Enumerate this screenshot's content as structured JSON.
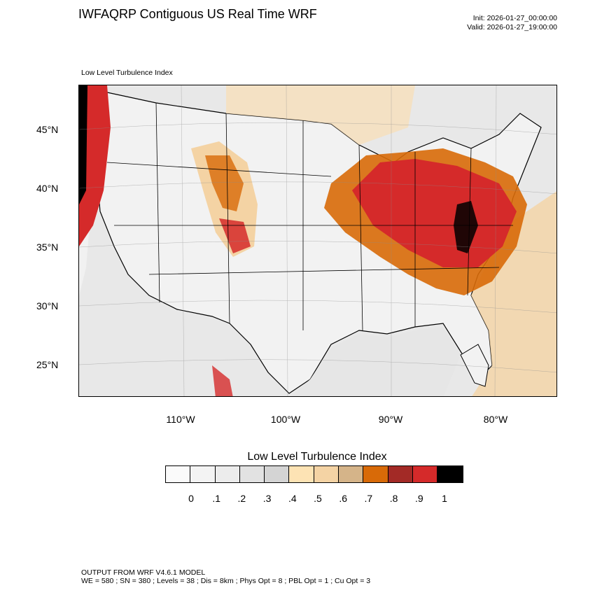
{
  "header": {
    "title": "IWFAQRP Contiguous US Real Time WRF",
    "init": "Init: 2026-01-27_00:00:00",
    "valid": "Valid: 2026-01-27_19:00:00"
  },
  "map": {
    "subtitle": "Low Level Turbulence Index",
    "lat_labels": [
      "45°N",
      "40°N",
      "35°N",
      "30°N",
      "25°N"
    ],
    "lon_labels": [
      "110°W",
      "100°W",
      "90°W",
      "80°W"
    ]
  },
  "legend": {
    "title": "Low Level Turbulence Index",
    "labels": [
      "0",
      ".1",
      ".2",
      ".3",
      ".4",
      ".5",
      ".6",
      ".7",
      ".8",
      ".9",
      "1"
    ],
    "colors": [
      "#fafafa",
      "#f3f3f3",
      "#ececec",
      "#e2e2e2",
      "#d4d4d4",
      "#fde3b4",
      "#f4d3a4",
      "#d5b489",
      "#d86a08",
      "#a32a26",
      "#d52a2a",
      "#000000"
    ]
  },
  "footer": {
    "line1": "OUTPUT FROM WRF V4.6.1 MODEL",
    "line2": "WE = 580 ; SN = 380 ; Levels = 38 ; Dis = 8km ; Phys Opt = 8 ; PBL Opt = 1 ; Cu Opt = 3"
  }
}
